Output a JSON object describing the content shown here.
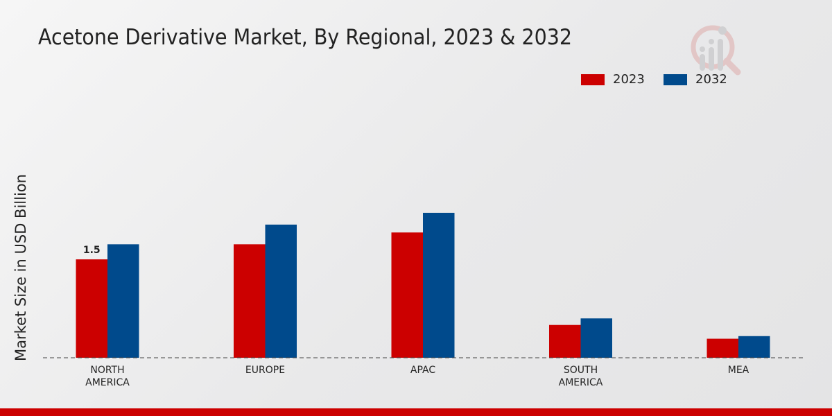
{
  "chart_data": {
    "type": "bar",
    "title": "Acetone Derivative Market, By Regional, 2023 & 2032",
    "xlabel": "",
    "ylabel": "Market Size in USD Billion",
    "categories": [
      "NORTH\nAMERICA",
      "EUROPE",
      "APAC",
      "SOUTH\nAMERICA",
      "MEA"
    ],
    "series": [
      {
        "name": "2023",
        "color": "#cc0000",
        "values": [
          1.5,
          1.73,
          1.91,
          0.5,
          0.29
        ]
      },
      {
        "name": "2032",
        "color": "#004a8c",
        "values": [
          1.73,
          2.03,
          2.21,
          0.6,
          0.33
        ]
      }
    ],
    "data_labels": [
      {
        "series": 0,
        "index": 0,
        "text": "1.5"
      }
    ],
    "ylim": [
      0,
      4.45
    ],
    "grid": false,
    "legend_position": "top-right"
  }
}
